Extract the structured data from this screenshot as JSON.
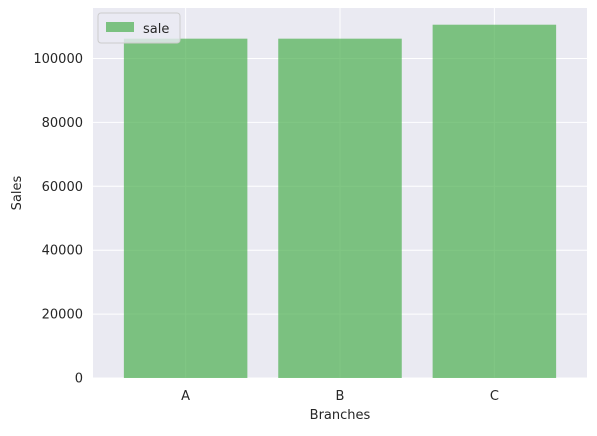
{
  "chart_data": {
    "type": "bar",
    "categories": [
      "A",
      "B",
      "C"
    ],
    "series": [
      {
        "name": "sale",
        "values": [
          106200,
          106200,
          110570
        ]
      }
    ],
    "xlabel": "Branches",
    "ylabel": "Sales",
    "ylim": [
      0,
      115800
    ],
    "yticks": [
      0,
      20000,
      40000,
      60000,
      80000,
      100000
    ],
    "grid": true,
    "legend": "top-left",
    "colors": {
      "bar": "#4caf50",
      "plot_background": "#eaeaf2",
      "grid": "#ffffff",
      "text": "#262626"
    }
  }
}
